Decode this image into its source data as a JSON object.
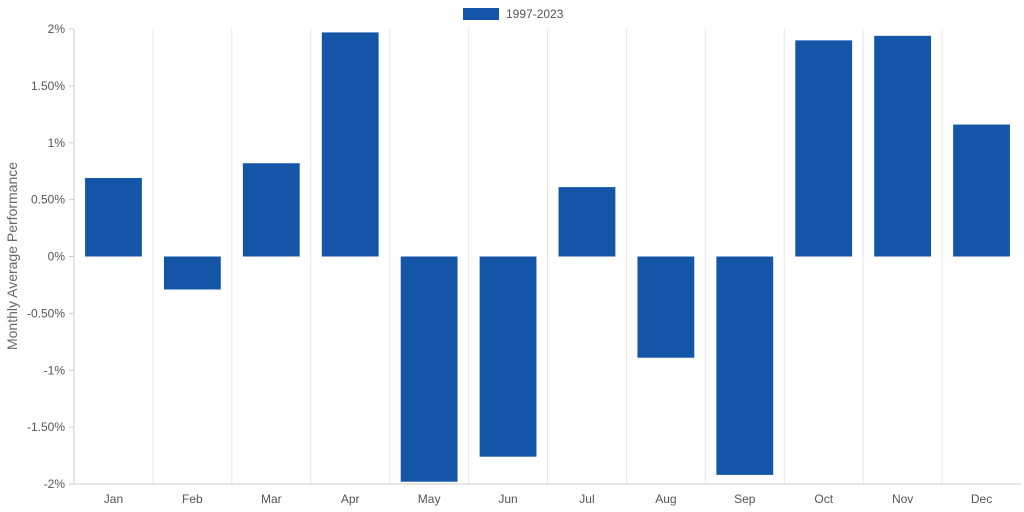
{
  "chart_data": {
    "type": "bar",
    "categories": [
      "Jan",
      "Feb",
      "Mar",
      "Apr",
      "May",
      "Jun",
      "Jul",
      "Aug",
      "Sep",
      "Oct",
      "Nov",
      "Dec"
    ],
    "series": [
      {
        "name": "1997-2023",
        "color": "#1555a8",
        "values": [
          0.69,
          -0.29,
          0.82,
          1.97,
          -1.98,
          -1.76,
          0.61,
          -0.89,
          -1.92,
          1.9,
          1.94,
          1.16
        ]
      }
    ],
    "ylabel": "Monthly Average Performance",
    "ylim": [
      -2,
      2
    ],
    "yticks": [
      2,
      1.5,
      1,
      0.5,
      0,
      -0.5,
      -1,
      -1.5,
      -2
    ],
    "ytick_labels": [
      "2%",
      "1.50%",
      "1%",
      "0.50%",
      "0%",
      "-0.50%",
      "-1%",
      "-1.50%",
      "-2%"
    ],
    "grid": "vertical",
    "legend_position": "top-center"
  }
}
